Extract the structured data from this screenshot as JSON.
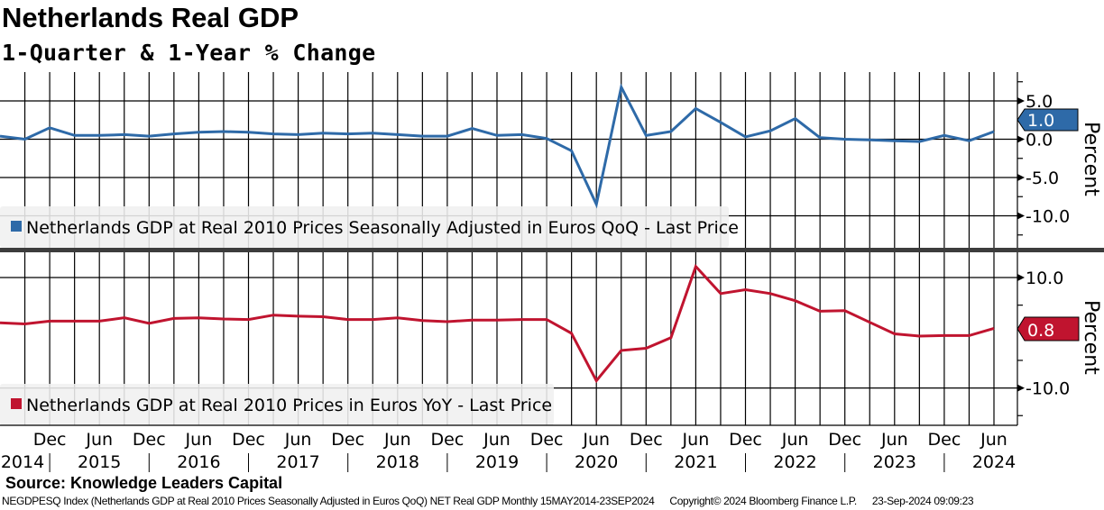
{
  "header": {
    "title": "Netherlands Real GDP",
    "subtitle": "1-Quarter & 1-Year % Change"
  },
  "source": "Source: Knowledge Leaders Capital",
  "footer": {
    "ticker": "NEGDPESQ Index (Netherlands GDP at Real 2010 Prices Seasonally Adjusted in Euros QoQ) NET Real GDP  Monthly 15MAY2014-23SEP2024",
    "copyright": "Copyright© 2024 Bloomberg Finance L.P.",
    "timestamp": "23-Sep-2024 09:09:23"
  },
  "x_axis": {
    "month_labels": [
      "Dec",
      "Jun",
      "Dec",
      "Jun",
      "Dec",
      "Jun",
      "Dec",
      "Jun",
      "Dec",
      "Jun",
      "Dec",
      "Jun",
      "Dec",
      "Jun",
      "Dec",
      "Jun",
      "Dec",
      "Jun",
      "Dec",
      "Jun"
    ],
    "year_labels": [
      "2014",
      "2015",
      "2016",
      "2017",
      "2018",
      "2019",
      "2020",
      "2021",
      "2022",
      "2023",
      "2024"
    ]
  },
  "chart_data": [
    {
      "type": "line",
      "title": "Netherlands GDP QoQ",
      "legend": "Netherlands GDP at Real 2010 Prices Seasonally Adjusted in Euros QoQ - Last Price",
      "ylabel": "Percent",
      "ylim": [
        -14,
        8.8
      ],
      "yticks": [
        "5.0",
        "0.0",
        "-5.0",
        "-10.0"
      ],
      "ytick_values": [
        5,
        0,
        -5,
        -10
      ],
      "last_value": "1.0",
      "color": "#2e6aa8",
      "x_start": "Jun 2014",
      "x_end": "Jun 2024",
      "frequency": "quarterly",
      "values": [
        0.4,
        0.0,
        1.5,
        0.5,
        0.5,
        0.6,
        0.4,
        0.7,
        0.9,
        1.0,
        0.9,
        0.7,
        0.6,
        0.8,
        0.7,
        0.8,
        0.6,
        0.4,
        0.4,
        1.4,
        0.5,
        0.6,
        0.1,
        -1.5,
        -8.5,
        6.8,
        0.5,
        1.0,
        4.0,
        2.2,
        0.3,
        1.1,
        2.7,
        0.2,
        0.0,
        -0.1,
        -0.2,
        -0.3,
        0.5,
        -0.2,
        1.0
      ]
    },
    {
      "type": "line",
      "title": "Netherlands GDP YoY",
      "legend": "Netherlands GDP at Real 2010 Prices in Euros YoY - Last Price",
      "ylabel": "Percent",
      "ylim": [
        -16.9,
        14.4
      ],
      "yticks": [
        "10.0",
        "-10.0"
      ],
      "ytick_values": [
        10,
        -10
      ],
      "last_value": "0.8",
      "color": "#c0142f",
      "x_start": "Jun 2014",
      "x_end": "Jun 2024",
      "frequency": "quarterly",
      "values": [
        1.8,
        1.6,
        2.1,
        2.1,
        2.1,
        2.7,
        1.7,
        2.6,
        2.7,
        2.5,
        2.4,
        3.2,
        3.0,
        2.9,
        2.4,
        2.4,
        2.7,
        2.2,
        2.0,
        2.3,
        2.3,
        2.4,
        2.4,
        -0.1,
        -8.7,
        -3.2,
        -2.8,
        -0.9,
        12.0,
        7.1,
        7.8,
        7.1,
        5.8,
        3.9,
        4.0,
        1.9,
        -0.2,
        -0.6,
        -0.5,
        -0.5,
        0.8
      ]
    }
  ]
}
